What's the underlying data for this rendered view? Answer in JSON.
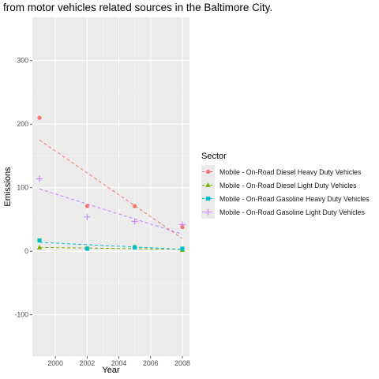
{
  "chart_data": {
    "type": "scatter",
    "title": "from motor vehicles related sources in the Baltimore City.",
    "xlabel": "Year",
    "ylabel": "Emissions",
    "xlim": [
      1998.55,
      2008.45
    ],
    "ylim": [
      -165,
      368
    ],
    "xticks": [
      2000,
      2002,
      2004,
      2006,
      2008
    ],
    "yticks": [
      -100,
      0,
      100,
      200,
      300
    ],
    "legend_title": "Sector",
    "legend_position": "right",
    "grid": true,
    "trend_lines": "linear fit, dashed",
    "series": [
      {
        "name": "Mobile - On-Road Diesel Heavy Duty Vehicles",
        "color": "#F8766D",
        "marker": "circle",
        "x": [
          1999,
          2002,
          2005,
          2008
        ],
        "y": [
          210,
          71,
          71,
          38
        ],
        "fit": [
          [
            1999,
            175
          ],
          [
            2008,
            20
          ]
        ]
      },
      {
        "name": "Mobile - On-Road Diesel Light Duty Vehicles",
        "color": "#7CAE00",
        "marker": "triangle",
        "x": [
          1999,
          2002,
          2005,
          2008
        ],
        "y": [
          6,
          5,
          7,
          2
        ],
        "fit": [
          [
            1999,
            6
          ],
          [
            2008,
            3
          ]
        ]
      },
      {
        "name": "Mobile - On-Road Gasoline Heavy Duty Vehicles",
        "color": "#00BFC4",
        "marker": "square",
        "x": [
          1999,
          2002,
          2005,
          2008
        ],
        "y": [
          17,
          4,
          6,
          4
        ],
        "fit": [
          [
            1999,
            14
          ],
          [
            2008,
            3
          ]
        ]
      },
      {
        "name": "Mobile - On-Road Gasoline Light Duty Vehicles",
        "color": "#C77CFF",
        "marker": "plus",
        "x": [
          1999,
          2002,
          2005,
          2008
        ],
        "y": [
          114,
          54,
          47,
          42
        ],
        "fit": [
          [
            1999,
            98
          ],
          [
            2008,
            27
          ]
        ]
      }
    ]
  }
}
